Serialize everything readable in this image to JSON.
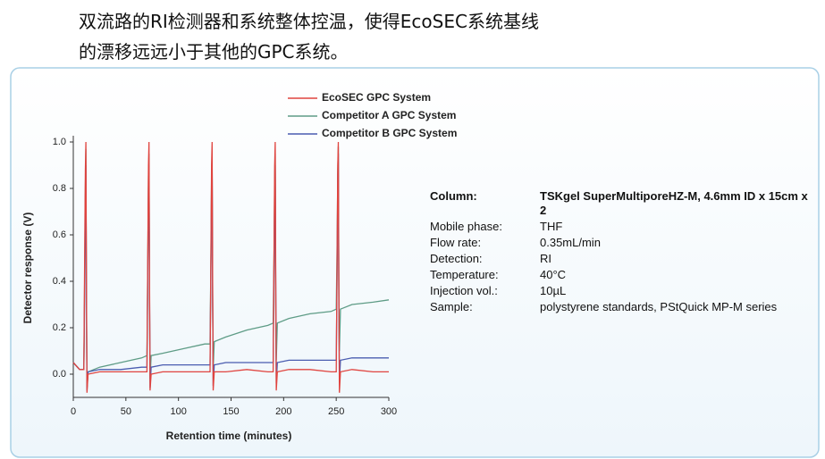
{
  "heading": [
    "双流路的RI检测器和系统整体控温，使得EcoSEC系统基线",
    "的漂移远远小于其他的GPC系统。"
  ],
  "chart_data": {
    "type": "line",
    "xlabel": "Retention time (minutes)",
    "ylabel": "Detector response (V)",
    "xlim": [
      0,
      300
    ],
    "ylim": [
      -0.1,
      1.05
    ],
    "xticks": [
      0,
      50,
      100,
      150,
      200,
      250,
      300
    ],
    "yticks": [
      {
        "value": 0,
        "label": "0.0"
      },
      0.2,
      0.4,
      0.6,
      0.8,
      {
        "value": 1,
        "label": "1.0"
      }
    ],
    "grid": false,
    "legend": "top",
    "x": [
      0,
      6,
      10,
      11,
      11.5,
      12,
      12.5,
      13,
      14,
      25,
      45,
      65,
      70,
      71,
      71.5,
      72,
      72.5,
      73,
      74,
      85,
      105,
      125,
      130,
      131,
      131.5,
      132,
      132.5,
      133,
      134,
      145,
      165,
      185,
      190,
      191,
      191.5,
      192,
      192.5,
      193,
      194,
      205,
      225,
      245,
      250,
      251,
      251.5,
      252,
      252.5,
      253,
      254,
      265,
      285,
      300
    ],
    "series": [
      {
        "name": "EcoSEC GPC System",
        "color": "#e0443f",
        "values": [
          0.05,
          0.02,
          0.02,
          0.6,
          0.88,
          1.0,
          0.4,
          -0.08,
          0.0,
          0.01,
          0.01,
          0.01,
          0.01,
          0.6,
          0.9,
          1.0,
          0.4,
          -0.07,
          0.0,
          0.01,
          0.01,
          0.01,
          0.01,
          0.6,
          0.9,
          1.0,
          0.4,
          -0.07,
          0.01,
          0.01,
          0.02,
          0.01,
          0.01,
          0.6,
          0.9,
          1.0,
          0.4,
          -0.07,
          0.01,
          0.02,
          0.02,
          0.01,
          0.01,
          0.6,
          0.9,
          1.0,
          0.4,
          -0.08,
          0.01,
          0.02,
          0.01,
          0.01
        ]
      },
      {
        "name": "Competitor A GPC System",
        "color": "#5e9c86",
        "values": [
          0.05,
          0.02,
          0.02,
          0.5,
          0.8,
          0.97,
          0.3,
          -0.06,
          0.01,
          0.03,
          0.05,
          0.07,
          0.08,
          0.55,
          0.85,
          0.95,
          0.3,
          -0.02,
          0.08,
          0.09,
          0.11,
          0.13,
          0.13,
          0.55,
          0.85,
          0.95,
          0.3,
          0.02,
          0.14,
          0.16,
          0.19,
          0.21,
          0.22,
          0.55,
          0.85,
          0.95,
          0.3,
          0.06,
          0.22,
          0.24,
          0.26,
          0.27,
          0.28,
          0.6,
          0.88,
          0.98,
          0.3,
          0.1,
          0.28,
          0.3,
          0.31,
          0.32
        ]
      },
      {
        "name": "Competitor B GPC System",
        "color": "#4a5cb0",
        "values": [
          0.05,
          0.02,
          0.02,
          0.4,
          0.75,
          0.9,
          0.35,
          -0.07,
          0.01,
          0.02,
          0.02,
          0.03,
          0.03,
          0.5,
          0.8,
          0.9,
          0.35,
          -0.06,
          0.03,
          0.04,
          0.04,
          0.04,
          0.04,
          0.5,
          0.8,
          0.92,
          0.35,
          -0.05,
          0.04,
          0.05,
          0.05,
          0.05,
          0.05,
          0.5,
          0.8,
          0.9,
          0.35,
          -0.04,
          0.05,
          0.06,
          0.06,
          0.06,
          0.06,
          0.5,
          0.85,
          0.95,
          0.35,
          -0.03,
          0.06,
          0.07,
          0.07,
          0.07
        ]
      }
    ]
  },
  "conditions": [
    {
      "label": "Column:",
      "value": "TSKgel SuperMultiporeHZ-M, 4.6mm ID x 15cm x 2"
    },
    {
      "label": "Mobile phase:",
      "value": "THF"
    },
    {
      "label": "Flow rate:",
      "value": "0.35mL/min"
    },
    {
      "label": "Detection:",
      "value": "RI"
    },
    {
      "label": "Temperature:",
      "value": "40°C"
    },
    {
      "label": "Injection vol.:",
      "value": "10µL"
    },
    {
      "label": "Sample:",
      "value": "polystyrene standards, PStQuick MP-M series"
    }
  ]
}
